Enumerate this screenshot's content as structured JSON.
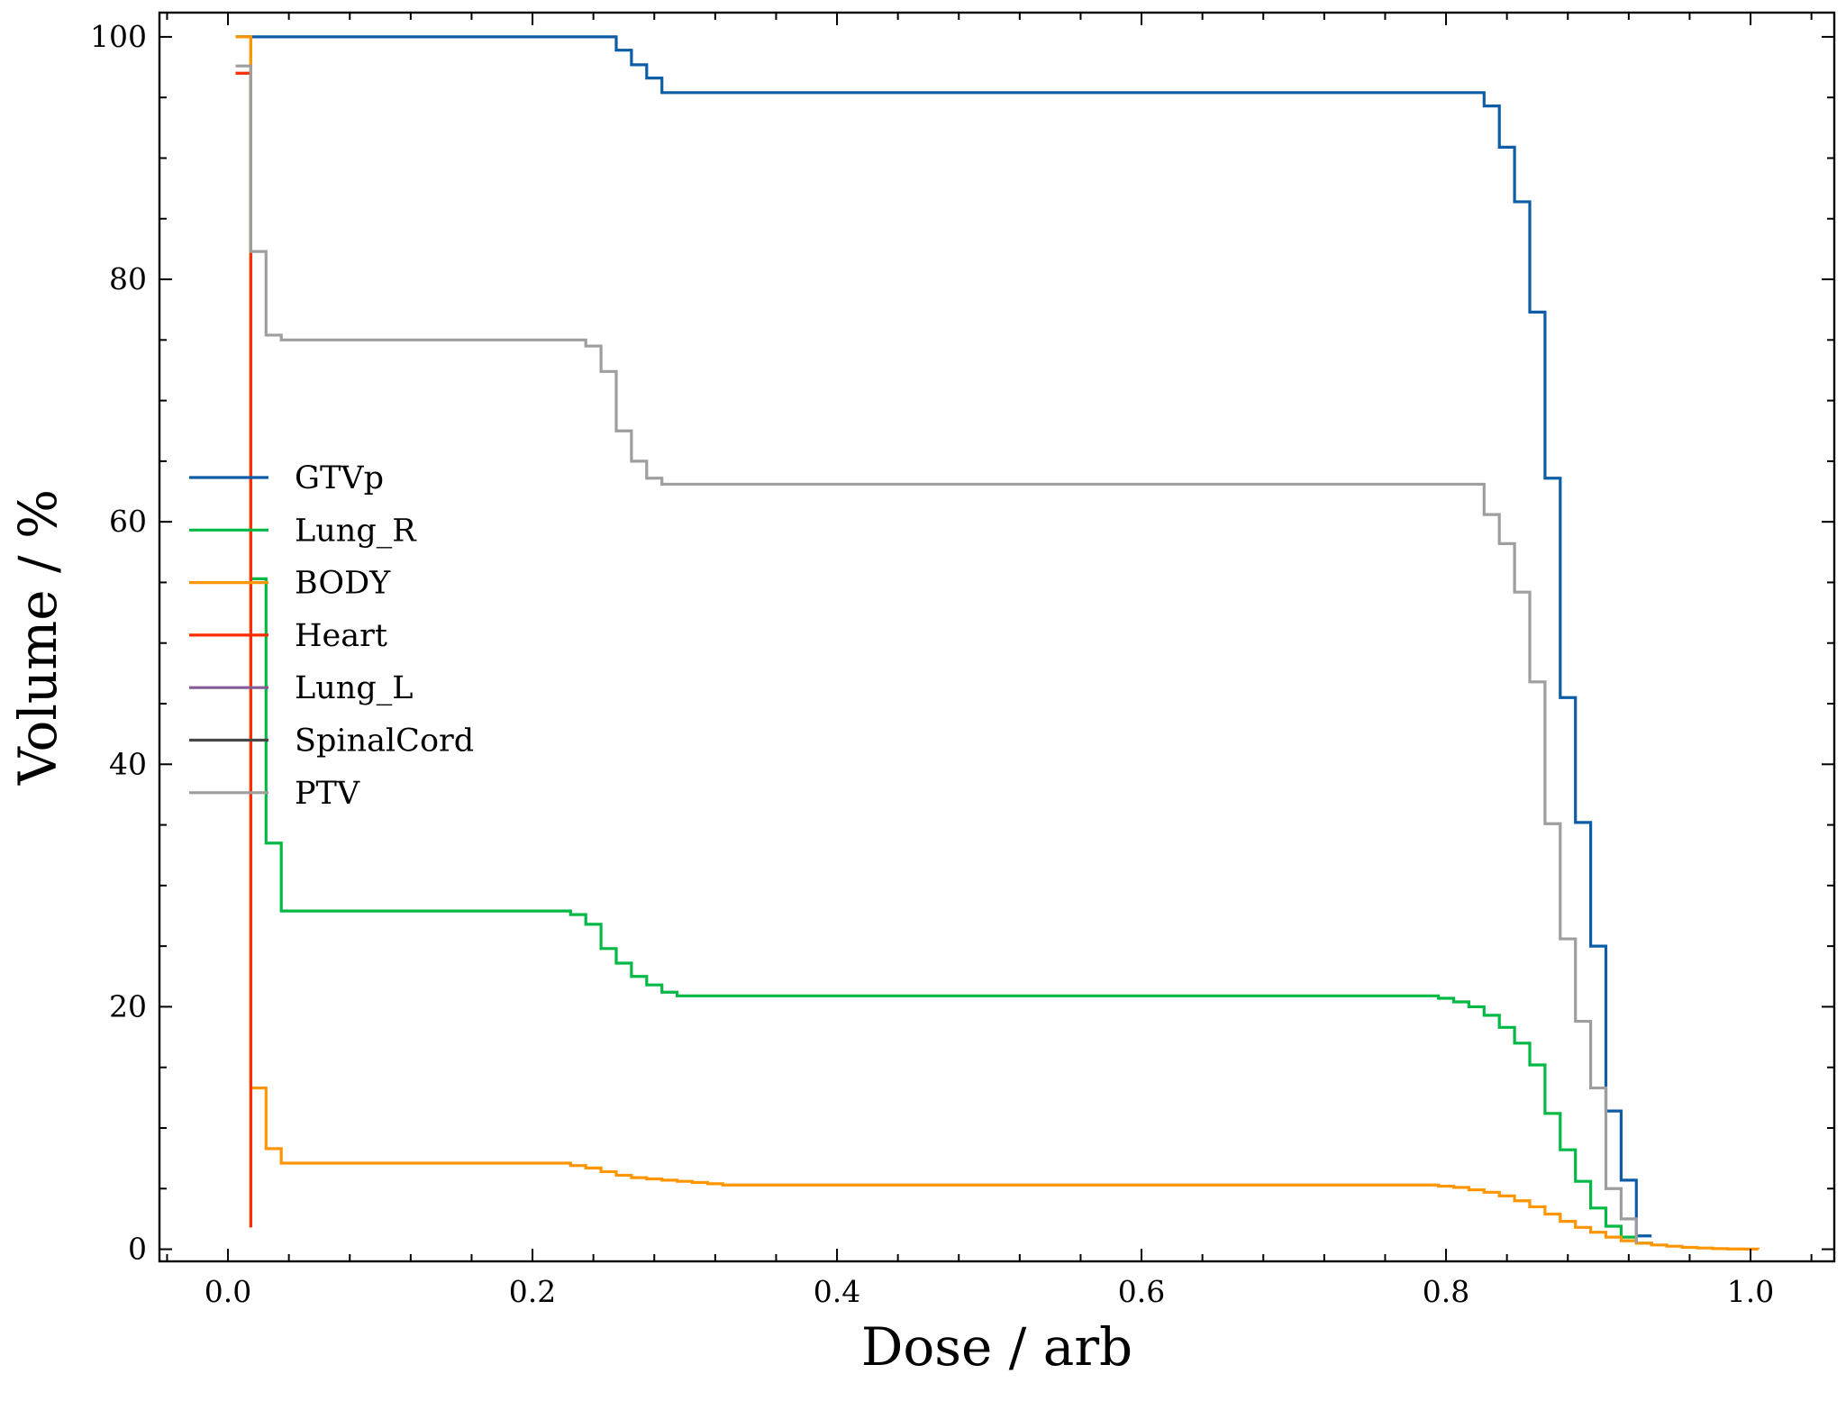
{
  "chart_data": {
    "type": "line",
    "title": "",
    "xlabel": "Dose / arb",
    "ylabel": "Volume / %",
    "xlim": [
      -0.045,
      1.055
    ],
    "ylim": [
      -1,
      102
    ],
    "xticks": [
      0.0,
      0.2,
      0.4,
      0.6,
      0.8,
      1.0
    ],
    "xtick_labels": [
      "0.0",
      "0.2",
      "0.4",
      "0.6",
      "0.8",
      "1.0"
    ],
    "yticks": [
      0,
      20,
      40,
      60,
      80,
      100
    ],
    "ytick_labels": [
      "0",
      "20",
      "40",
      "60",
      "80",
      "100"
    ],
    "grid": false,
    "legend_position": "center-left",
    "series": [
      {
        "name": "GTVp",
        "color": "#0C5DA5",
        "step": true,
        "x": [
          0.005,
          0.255,
          0.265,
          0.275,
          0.285,
          0.825,
          0.835,
          0.845,
          0.855,
          0.865,
          0.875,
          0.885,
          0.895,
          0.905,
          0.915,
          0.925,
          0.935
        ],
        "y": [
          100,
          98.9,
          97.7,
          96.6,
          95.4,
          94.3,
          90.9,
          86.4,
          77.3,
          63.6,
          45.5,
          35.2,
          25.0,
          11.4,
          5.7,
          1.1,
          1.1
        ]
      },
      {
        "name": "Lung_R",
        "color": "#00B945",
        "step": true,
        "x": [
          0.005,
          0.015,
          0.025,
          0.035,
          0.225,
          0.235,
          0.245,
          0.255,
          0.265,
          0.275,
          0.285,
          0.295,
          0.795,
          0.805,
          0.815,
          0.825,
          0.835,
          0.845,
          0.855,
          0.865,
          0.875,
          0.885,
          0.895,
          0.905,
          0.915,
          0.925,
          0.935
        ],
        "y": [
          100,
          55.3,
          33.5,
          27.9,
          27.6,
          26.8,
          24.8,
          23.6,
          22.5,
          21.8,
          21.2,
          20.9,
          20.7,
          20.4,
          20.0,
          19.3,
          18.3,
          17.0,
          15.2,
          11.2,
          8.2,
          5.6,
          3.4,
          1.9,
          1.0,
          0.5,
          0.3
        ]
      },
      {
        "name": "BODY",
        "color": "#FF9500",
        "step": true,
        "x": [
          0.005,
          0.015,
          0.025,
          0.035,
          0.225,
          0.235,
          0.245,
          0.255,
          0.265,
          0.275,
          0.285,
          0.295,
          0.305,
          0.315,
          0.325,
          0.795,
          0.805,
          0.815,
          0.825,
          0.835,
          0.845,
          0.855,
          0.865,
          0.875,
          0.885,
          0.895,
          0.905,
          0.915,
          0.925,
          0.935,
          0.945,
          0.955,
          0.965,
          0.975,
          0.985,
          0.995,
          1.005
        ],
        "y": [
          100,
          13.3,
          8.3,
          7.1,
          6.9,
          6.7,
          6.4,
          6.1,
          5.9,
          5.8,
          5.7,
          5.6,
          5.5,
          5.4,
          5.3,
          5.2,
          5.1,
          4.9,
          4.7,
          4.4,
          4.0,
          3.5,
          2.9,
          2.3,
          1.8,
          1.4,
          1.0,
          0.7,
          0.5,
          0.35,
          0.25,
          0.15,
          0.1,
          0.05,
          0.02,
          0.01,
          0.0
        ]
      },
      {
        "name": "Heart",
        "color": "#FF2C00",
        "step": true,
        "x": [
          0.005,
          0.015
        ],
        "y": [
          97.0,
          1.8
        ]
      },
      {
        "name": "Lung_L",
        "color": "#845B97",
        "step": true,
        "x": [],
        "y": []
      },
      {
        "name": "SpinalCord",
        "color": "#474747",
        "step": true,
        "x": [],
        "y": []
      },
      {
        "name": "PTV",
        "color": "#9E9E9E",
        "step": true,
        "x": [
          0.005,
          0.015,
          0.025,
          0.035,
          0.235,
          0.245,
          0.255,
          0.265,
          0.275,
          0.285,
          0.825,
          0.835,
          0.845,
          0.855,
          0.865,
          0.875,
          0.885,
          0.895,
          0.905,
          0.915,
          0.925
        ],
        "y": [
          97.6,
          82.3,
          75.4,
          75.0,
          74.5,
          72.4,
          67.5,
          65.0,
          63.6,
          63.1,
          60.6,
          58.2,
          54.2,
          46.8,
          35.1,
          25.6,
          18.8,
          13.3,
          5.0,
          2.5,
          0.5
        ]
      }
    ]
  }
}
